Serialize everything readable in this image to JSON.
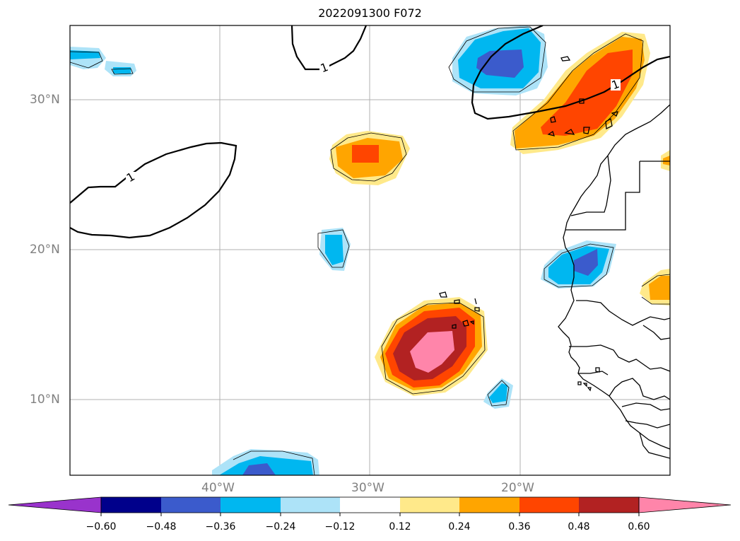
{
  "title": "2022091300 F072",
  "lat_ticks": [
    "30°N",
    "20°N",
    "10°N"
  ],
  "lon_ticks": [
    "40°W",
    "30°W",
    "20°W"
  ],
  "contour_label": "1",
  "colorbar": {
    "tick_labels": [
      "−0.60",
      "−0.48",
      "−0.36",
      "−0.24",
      "−0.12",
      "0.12",
      "0.24",
      "0.36",
      "0.48",
      "0.60"
    ],
    "colors": [
      "#9933cc",
      "#00008b",
      "#3b5bcc",
      "#00b7f0",
      "#ade3f8",
      "#ffffff",
      "#ffe98a",
      "#ffa500",
      "#ff4500",
      "#b22222",
      "#ff85aa"
    ]
  },
  "colors": {
    "light_blue": "#ade3f8",
    "cyan": "#00b7f0",
    "royal_blue": "#3b5bcc",
    "yellow": "#ffe98a",
    "orange": "#ffa500",
    "red_orange": "#ff4500",
    "dark_red": "#b22222",
    "pink": "#ff85aa"
  }
}
